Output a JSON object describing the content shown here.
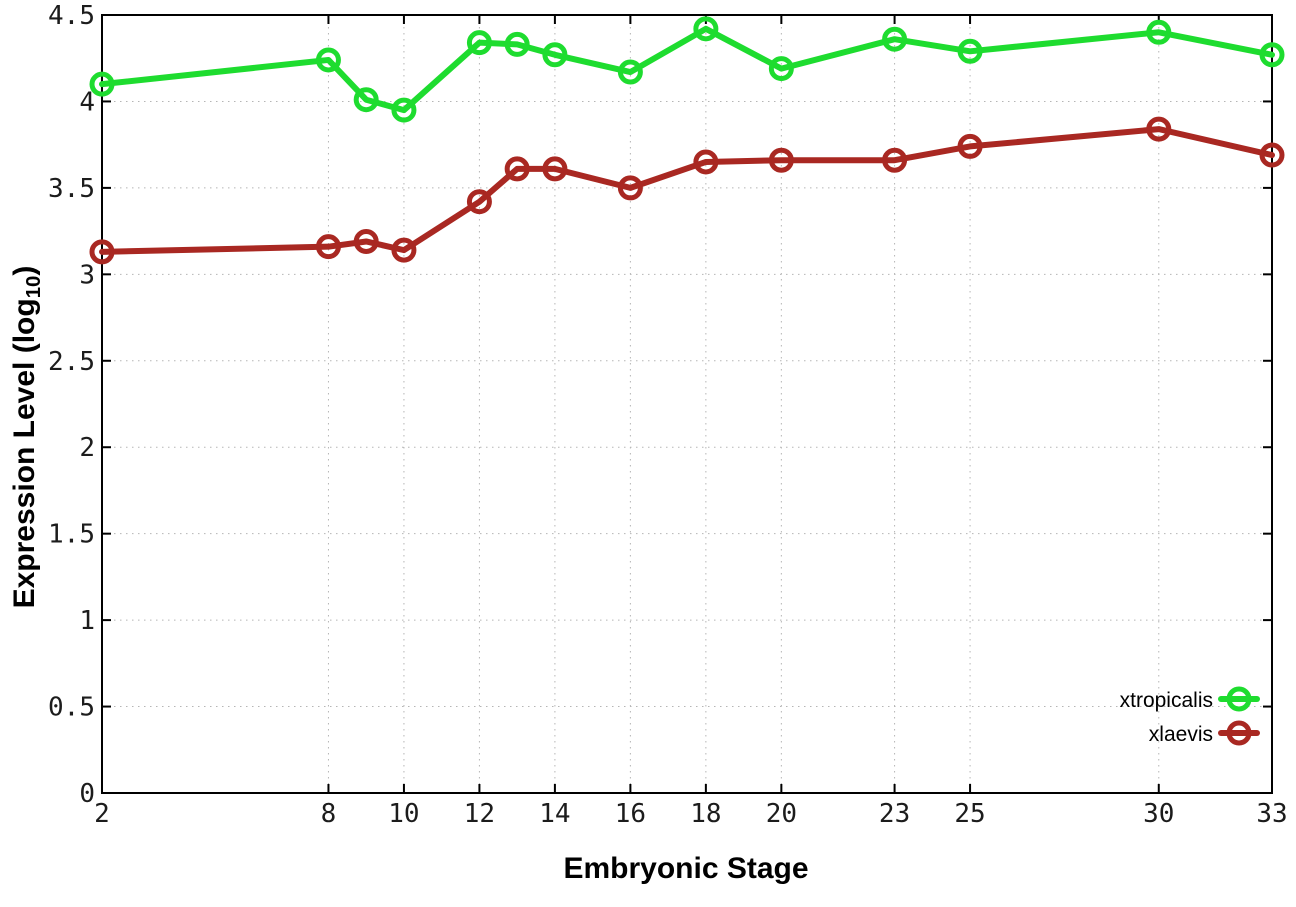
{
  "chart_data": {
    "type": "line",
    "title": "",
    "xlabel": "Embryonic Stage",
    "ylabel_pre": "Expression Level (log",
    "ylabel_sub": "10",
    "ylabel_post": ")",
    "xlim": [
      2,
      33
    ],
    "ylim": [
      0,
      4.5
    ],
    "xticks": [
      2,
      8,
      10,
      12,
      14,
      16,
      18,
      20,
      23,
      25,
      30,
      33
    ],
    "yticks": [
      0,
      0.5,
      1,
      1.5,
      2,
      2.5,
      3,
      3.5,
      4,
      4.5
    ],
    "ytick_labels": [
      "0",
      "0.5",
      "1",
      "1.5",
      "2",
      "2.5",
      "3",
      "3.5",
      "4",
      "4.5"
    ],
    "grid": true,
    "legend_position": "inside-right",
    "x": [
      2,
      8,
      9,
      10,
      12,
      13,
      14,
      16,
      18,
      20,
      23,
      25,
      30,
      33
    ],
    "series": [
      {
        "name": "xtropicalis",
        "color": "#1edc2f",
        "values": [
          4.1,
          4.24,
          4.01,
          3.95,
          4.34,
          4.33,
          4.27,
          4.17,
          4.42,
          4.19,
          4.36,
          4.29,
          4.4,
          4.27
        ]
      },
      {
        "name": "xlaevis",
        "color": "#a92822",
        "values": [
          3.13,
          3.16,
          3.19,
          3.14,
          3.42,
          3.61,
          3.61,
          3.5,
          3.65,
          3.66,
          3.66,
          3.74,
          3.84,
          3.69
        ]
      }
    ],
    "colors": {
      "grid": "#b5b5b5",
      "axis": "#000000",
      "tick_text": "#1c1c1c"
    }
  }
}
